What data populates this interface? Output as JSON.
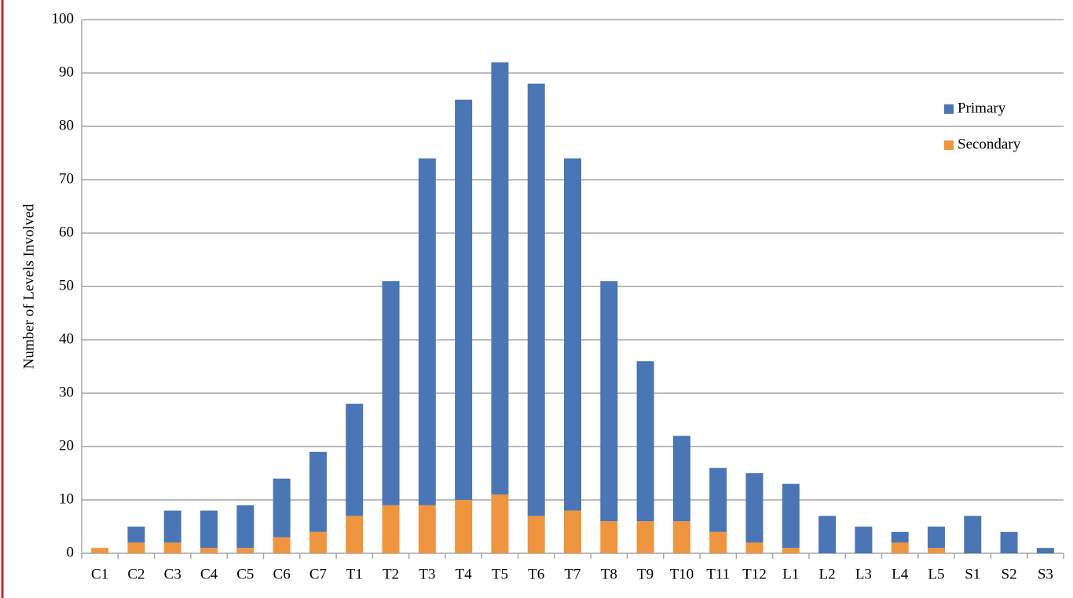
{
  "chart_data": {
    "type": "stacked_bar",
    "y_label": "Number of Levels Involved",
    "categories": [
      "C1",
      "C2",
      "C3",
      "C4",
      "C5",
      "C6",
      "C7",
      "T1",
      "T2",
      "T3",
      "T4",
      "T5",
      "T6",
      "T7",
      "T8",
      "T9",
      "T10",
      "T11",
      "T12",
      "L1",
      "L2",
      "L3",
      "L4",
      "L5",
      "S1",
      "S2",
      "S3"
    ],
    "series": [
      {
        "name": "Primary",
        "color": "#4a76b5",
        "values": [
          0,
          3,
          6,
          7,
          8,
          11,
          15,
          21,
          42,
          65,
          75,
          81,
          81,
          66,
          45,
          30,
          16,
          12,
          13,
          12,
          7,
          5,
          2,
          4,
          7,
          4,
          1
        ]
      },
      {
        "name": "Secondary",
        "color": "#f0953f",
        "values": [
          1,
          2,
          2,
          1,
          1,
          3,
          4,
          7,
          9,
          9,
          10,
          11,
          7,
          8,
          6,
          6,
          6,
          4,
          2,
          1,
          0,
          0,
          2,
          1,
          0,
          0,
          0
        ]
      }
    ],
    "ylim": [
      0,
      100
    ],
    "yticks": [
      0,
      10,
      20,
      30,
      40,
      50,
      60,
      70,
      80,
      90,
      100
    ],
    "grid": true,
    "legend": "upper right"
  }
}
